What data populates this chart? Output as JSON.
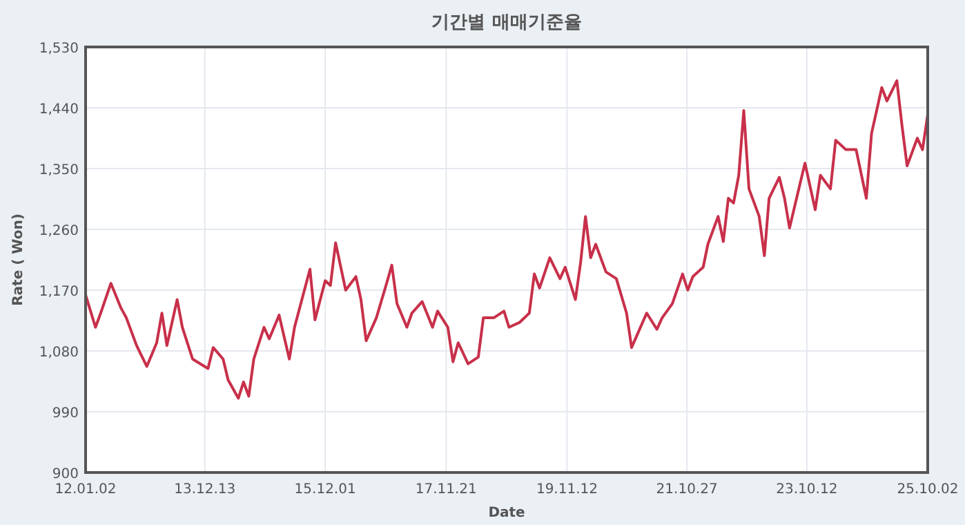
{
  "chart_data": {
    "type": "line",
    "title": "기간별 매매기준율",
    "xlabel": "Date",
    "ylabel": "Rate ( Won)",
    "x": [
      "2012-01-02",
      "2012-03",
      "2012-04",
      "2012-06",
      "2012-08",
      "2012-09",
      "2012-11",
      "2013-01",
      "2013-03",
      "2013-04",
      "2013-05",
      "2013-07",
      "2013-08",
      "2013-10",
      "2014-01",
      "2014-02",
      "2014-04",
      "2014-05",
      "2014-07",
      "2014-08",
      "2014-09",
      "2014-10",
      "2014-12",
      "2015-01",
      "2015-03",
      "2015-05",
      "2015-06",
      "2015-09",
      "2015-10",
      "2015-12",
      "2016-01",
      "2016-02",
      "2016-04",
      "2016-06",
      "2016-07",
      "2016-08",
      "2016-10",
      "2016-12",
      "2017-01",
      "2017-02",
      "2017-04",
      "2017-05",
      "2017-07",
      "2017-09",
      "2017-10",
      "2017-12",
      "2018-01",
      "2018-02",
      "2018-04",
      "2018-06",
      "2018-07",
      "2018-09",
      "2018-11",
      "2018-12",
      "2019-02",
      "2019-04",
      "2019-05",
      "2019-06",
      "2019-08",
      "2019-10",
      "2019-11",
      "2020-01",
      "2020-02",
      "2020-03",
      "2020-04",
      "2020-05",
      "2020-07",
      "2020-09",
      "2020-11",
      "2020-12",
      "2021-03",
      "2021-05",
      "2021-06",
      "2021-08",
      "2021-10",
      "2021-11",
      "2021-12",
      "2022-02",
      "2022-03",
      "2022-05",
      "2022-06",
      "2022-07",
      "2022-08",
      "2022-09",
      "2022-10",
      "2022-11",
      "2023-01",
      "2023-02",
      "2023-03",
      "2023-05",
      "2023-06",
      "2023-07",
      "2023-09",
      "2023-10",
      "2023-12",
      "2024-01",
      "2024-03",
      "2024-04",
      "2024-06",
      "2024-08",
      "2024-10",
      "2024-11",
      "2025-01",
      "2025-02",
      "2025-04",
      "2025-05",
      "2025-06",
      "2025-08",
      "2025-09",
      "2025-10-02"
    ],
    "values": [
      1163,
      1115,
      1136,
      1180,
      1143,
      1129,
      1088,
      1057,
      1092,
      1136,
      1088,
      1156,
      1115,
      1068,
      1054,
      1085,
      1068,
      1037,
      1010,
      1034,
      1013,
      1068,
      1115,
      1098,
      1133,
      1068,
      1115,
      1201,
      1126,
      1184,
      1177,
      1240,
      1170,
      1190,
      1156,
      1095,
      1129,
      1180,
      1207,
      1150,
      1115,
      1136,
      1153,
      1115,
      1139,
      1115,
      1064,
      1092,
      1061,
      1071,
      1129,
      1129,
      1139,
      1115,
      1122,
      1136,
      1194,
      1173,
      1218,
      1187,
      1204,
      1156,
      1211,
      1279,
      1218,
      1238,
      1197,
      1187,
      1136,
      1085,
      1136,
      1112,
      1129,
      1150,
      1194,
      1170,
      1190,
      1204,
      1238,
      1279,
      1242,
      1306,
      1299,
      1340,
      1436,
      1320,
      1279,
      1221,
      1306,
      1337,
      1306,
      1262,
      1327,
      1358,
      1289,
      1340,
      1320,
      1392,
      1378,
      1378,
      1306,
      1402,
      1470,
      1450,
      1480,
      1415,
      1354,
      1395,
      1378,
      1430
    ],
    "color": "#c8304a",
    "xlim": [
      "2012-01-02",
      "2025-10-02"
    ],
    "xticks": [
      {
        "value": "2012-01-02",
        "label": "12.01.02"
      },
      {
        "value": "2013-12-13",
        "label": "13.12.13"
      },
      {
        "value": "2015-12-01",
        "label": "15.12.01"
      },
      {
        "value": "2017-11-21",
        "label": "17.11.21"
      },
      {
        "value": "2019-11-12",
        "label": "19.11.12"
      },
      {
        "value": "2021-10-27",
        "label": "21.10.27"
      },
      {
        "value": "2023-10-12",
        "label": "23.10.12"
      },
      {
        "value": "2025-10-02",
        "label": "25.10.02"
      }
    ],
    "ylim": [
      900,
      1530
    ],
    "yticks": [
      {
        "value": 900,
        "label": "900"
      },
      {
        "value": 990,
        "label": "990"
      },
      {
        "value": 1080,
        "label": "1,080"
      },
      {
        "value": 1170,
        "label": "1,170"
      },
      {
        "value": 1260,
        "label": "1,260"
      },
      {
        "value": 1350,
        "label": "1,350"
      },
      {
        "value": 1440,
        "label": "1,440"
      },
      {
        "value": 1530,
        "label": "1,530"
      }
    ],
    "grid": true
  }
}
